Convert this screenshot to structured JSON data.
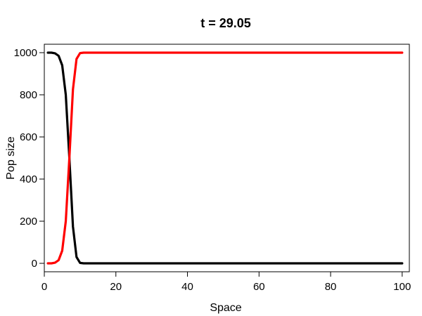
{
  "chart_data": {
    "type": "line",
    "title": "t = 29.05",
    "xlabel": "Space",
    "ylabel": "Pop size",
    "xlim": [
      0,
      102
    ],
    "ylim": [
      -40,
      1040
    ],
    "xticks": [
      0,
      20,
      40,
      60,
      80,
      100
    ],
    "yticks": [
      0,
      200,
      400,
      600,
      800,
      1000
    ],
    "xtick_labels": [
      "0",
      "20",
      "40",
      "60",
      "80",
      "100"
    ],
    "ytick_labels": [
      "0",
      "200",
      "400",
      "600",
      "800",
      "1000"
    ],
    "grid": false,
    "series": [
      {
        "color": "#000000",
        "x": [
          1,
          2,
          3,
          4,
          5,
          6,
          7,
          8,
          9,
          10,
          11,
          20,
          40,
          60,
          80,
          100
        ],
        "y": [
          1000,
          1000,
          997,
          985,
          940,
          800,
          500,
          175,
          30,
          2,
          0,
          0,
          0,
          0,
          0,
          0
        ]
      },
      {
        "color": "#ff0000",
        "x": [
          1,
          2,
          3,
          4,
          5,
          6,
          7,
          8,
          9,
          10,
          11,
          20,
          40,
          60,
          80,
          100
        ],
        "y": [
          0,
          0,
          3,
          15,
          60,
          200,
          500,
          825,
          970,
          998,
          1000,
          1000,
          1000,
          1000,
          1000,
          1000
        ]
      }
    ]
  }
}
